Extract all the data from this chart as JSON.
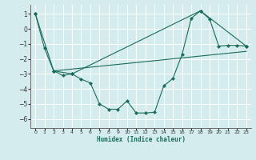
{
  "xlabel": "Humidex (Indice chaleur)",
  "background_color": "#d4ecee",
  "grid_color": "#ffffff",
  "line_color": "#1a6b5a",
  "xlim": [
    -0.5,
    23.5
  ],
  "ylim": [
    -6.6,
    1.6
  ],
  "yticks": [
    1,
    0,
    -1,
    -2,
    -3,
    -4,
    -5,
    -6
  ],
  "xticks": [
    0,
    1,
    2,
    3,
    4,
    5,
    6,
    7,
    8,
    9,
    10,
    11,
    12,
    13,
    14,
    15,
    16,
    17,
    18,
    19,
    20,
    21,
    22,
    23
  ],
  "line1_x": [
    0,
    1,
    2,
    3,
    4,
    5,
    6,
    7,
    8,
    9,
    10,
    11,
    12,
    13,
    14,
    15,
    16,
    17,
    18,
    19,
    20,
    21,
    22,
    23
  ],
  "line1_y": [
    1.0,
    -1.3,
    -2.8,
    -3.1,
    -3.0,
    -3.35,
    -3.6,
    -5.0,
    -5.35,
    -5.35,
    -4.8,
    -5.6,
    -5.6,
    -5.55,
    -3.8,
    -3.3,
    -1.7,
    0.7,
    1.2,
    0.65,
    -1.15,
    -1.1,
    -1.1,
    -1.15
  ],
  "line2_x": [
    0,
    2,
    4,
    18,
    23
  ],
  "line2_y": [
    1.0,
    -2.8,
    -3.0,
    1.2,
    -1.15
  ],
  "line3_x": [
    2,
    23
  ],
  "line3_y": [
    -2.8,
    -1.5
  ]
}
